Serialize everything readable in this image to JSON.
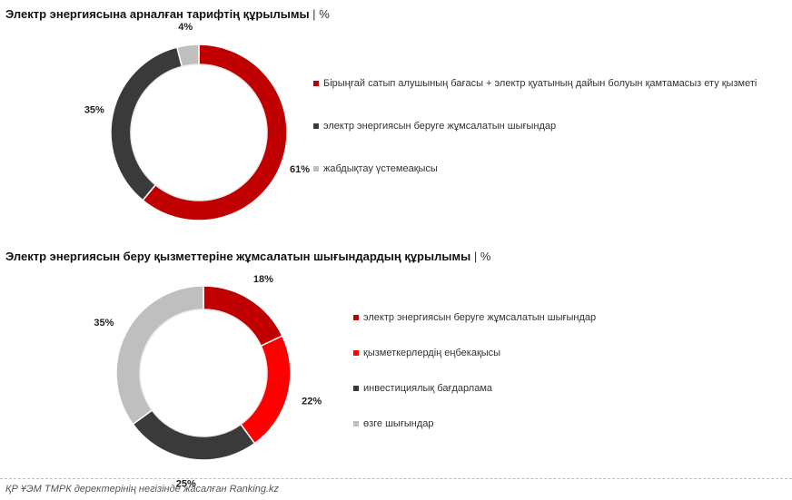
{
  "chart_data": [
    {
      "type": "pie",
      "title": "Электр энергиясына арналған тарифтің құрылымы",
      "unit": "%",
      "categories": [
        "Бірыңғай сатып алушының бағасы + электр қуатының дайын болуын қамтамасыз ету қызметі",
        "электр энергиясын беруге жұмсалатын шығындар",
        "жабдықтау үстемеақысы"
      ],
      "values": [
        61,
        35,
        4
      ],
      "labels": [
        "61%",
        "35%",
        "4%"
      ],
      "colors": [
        "#C00000",
        "#3A3A3A",
        "#BFBFBF"
      ],
      "legend_position": "right"
    },
    {
      "type": "pie",
      "title": "Электр энергиясын беру қызметтеріне жұмсалатын шығындардың құрылымы",
      "unit": "%",
      "categories": [
        "электр энергиясын беруге жұмсалатын шығындар",
        "қызметкерлердің еңбекақысы",
        "инвестициялық бағдарлама",
        "өзге шығындар"
      ],
      "values": [
        18,
        22,
        25,
        35
      ],
      "labels": [
        "18%",
        "22%",
        "25%",
        "35%"
      ],
      "colors": [
        "#C00000",
        "#FF0000",
        "#3A3A3A",
        "#BFBFBF"
      ],
      "legend_position": "right"
    }
  ],
  "footer": {
    "source": "ҚР ҰЭМ ТМРК деректерінің негізінде жасалған Ranking.kz"
  }
}
